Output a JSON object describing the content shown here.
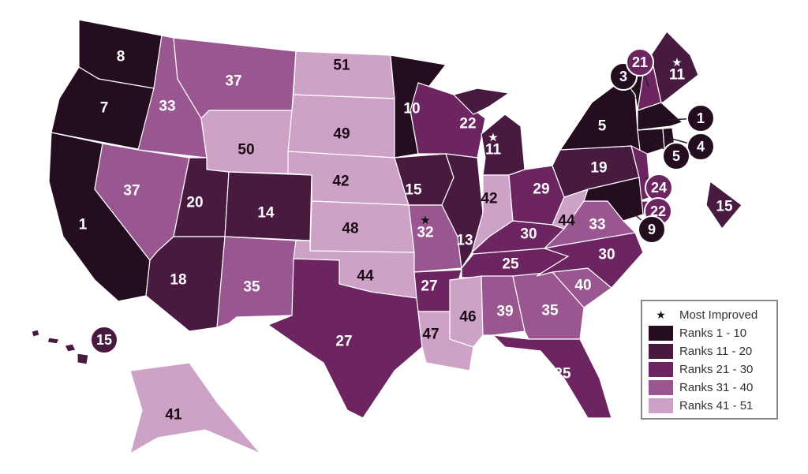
{
  "legend": {
    "most_improved_label": "Most Improved",
    "bins": [
      {
        "label": "Ranks 1 - 10",
        "min": 1,
        "max": 10,
        "color": "#240d1f"
      },
      {
        "label": "Ranks 11 - 20",
        "min": 11,
        "max": 20,
        "color": "#481a40"
      },
      {
        "label": "Ranks 21 - 30",
        "min": 21,
        "max": 30,
        "color": "#6c2560"
      },
      {
        "label": "Ranks 31 - 40",
        "min": 31,
        "max": 40,
        "color": "#9a5690"
      },
      {
        "label": "Ranks 41 - 51",
        "min": 41,
        "max": 51,
        "color": "#cda2c6"
      }
    ]
  },
  "ranks": {
    "WA": 8,
    "OR": 7,
    "CA": 1,
    "ID": 33,
    "NV": 37,
    "MT": 37,
    "WY": 50,
    "UT": 20,
    "CO": 14,
    "AZ": 18,
    "NM": 35,
    "ND": 51,
    "SD": 49,
    "NE": 42,
    "KS": 48,
    "OK": 44,
    "TX": 27,
    "MN": 10,
    "IA": 15,
    "MO": 32,
    "AR": 27,
    "LA": 47,
    "WI": 22,
    "IL": 13,
    "MI": 11,
    "IN": 42,
    "OH": 29,
    "KY": 30,
    "TN": 25,
    "MS": 46,
    "AL": 39,
    "GA": 35,
    "FL": 25,
    "SC": 40,
    "NC": 30,
    "VA": 33,
    "WV": 44,
    "PA": 19,
    "NY": 5,
    "VT": 3,
    "NH": 21,
    "ME": 11,
    "MA": 1,
    "RI": 4,
    "CT": 5,
    "NJ": 24,
    "DE": 22,
    "MD": 9,
    "DC": 15,
    "HI": 15,
    "AK": 41
  },
  "most_improved": [
    "MI",
    "MO",
    "ME"
  ]
}
